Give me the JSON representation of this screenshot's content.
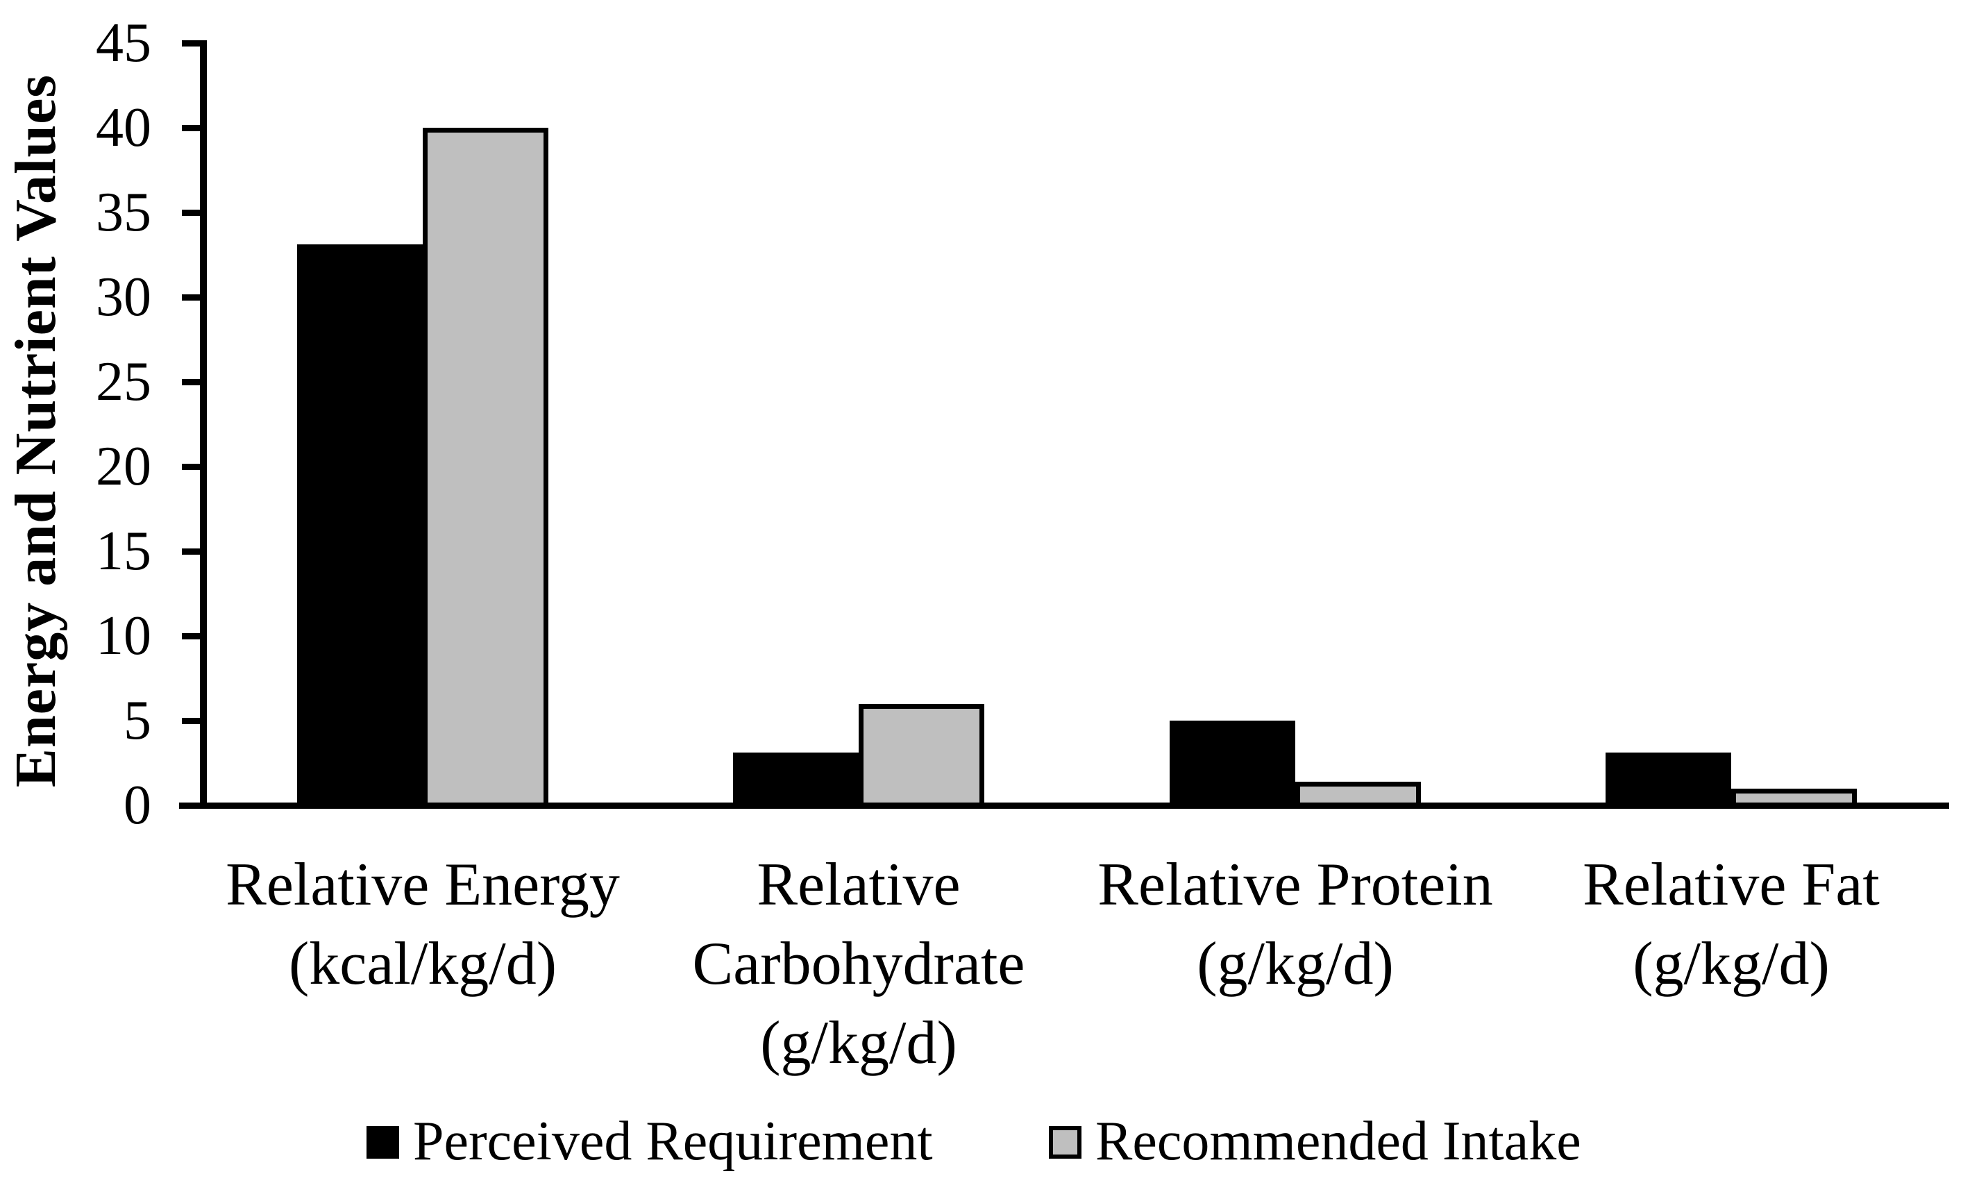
{
  "chart_data": {
    "type": "bar",
    "title": "",
    "xlabel": "",
    "ylabel": "Energy and Nutrient Values",
    "ylim": [
      0,
      45
    ],
    "ytick_step": 5,
    "yticks": [
      0,
      5,
      10,
      15,
      20,
      25,
      30,
      35,
      40,
      45
    ],
    "grid": false,
    "legend_position": "bottom",
    "categories": [
      {
        "id": "relative-energy",
        "lines": [
          "Relative Energy",
          "(kcal/kg/d)"
        ]
      },
      {
        "id": "relative-carbohydrate",
        "lines": [
          "Relative",
          "Carbohydrate",
          "(g/kg/d)"
        ]
      },
      {
        "id": "relative-protein",
        "lines": [
          "Relative Protein",
          "(g/kg/d)"
        ]
      },
      {
        "id": "relative-fat",
        "lines": [
          "Relative Fat",
          "(g/kg/d)"
        ]
      }
    ],
    "series": [
      {
        "name": "Perceived Requirement",
        "color": "#000000",
        "border_color": "#000000",
        "values": [
          33.1,
          3.1,
          5,
          3.1
        ]
      },
      {
        "name": "Recommended Intake",
        "color": "#bfbfbf",
        "border_color": "#000000",
        "values": [
          40,
          6,
          1.4,
          1
        ]
      }
    ]
  }
}
